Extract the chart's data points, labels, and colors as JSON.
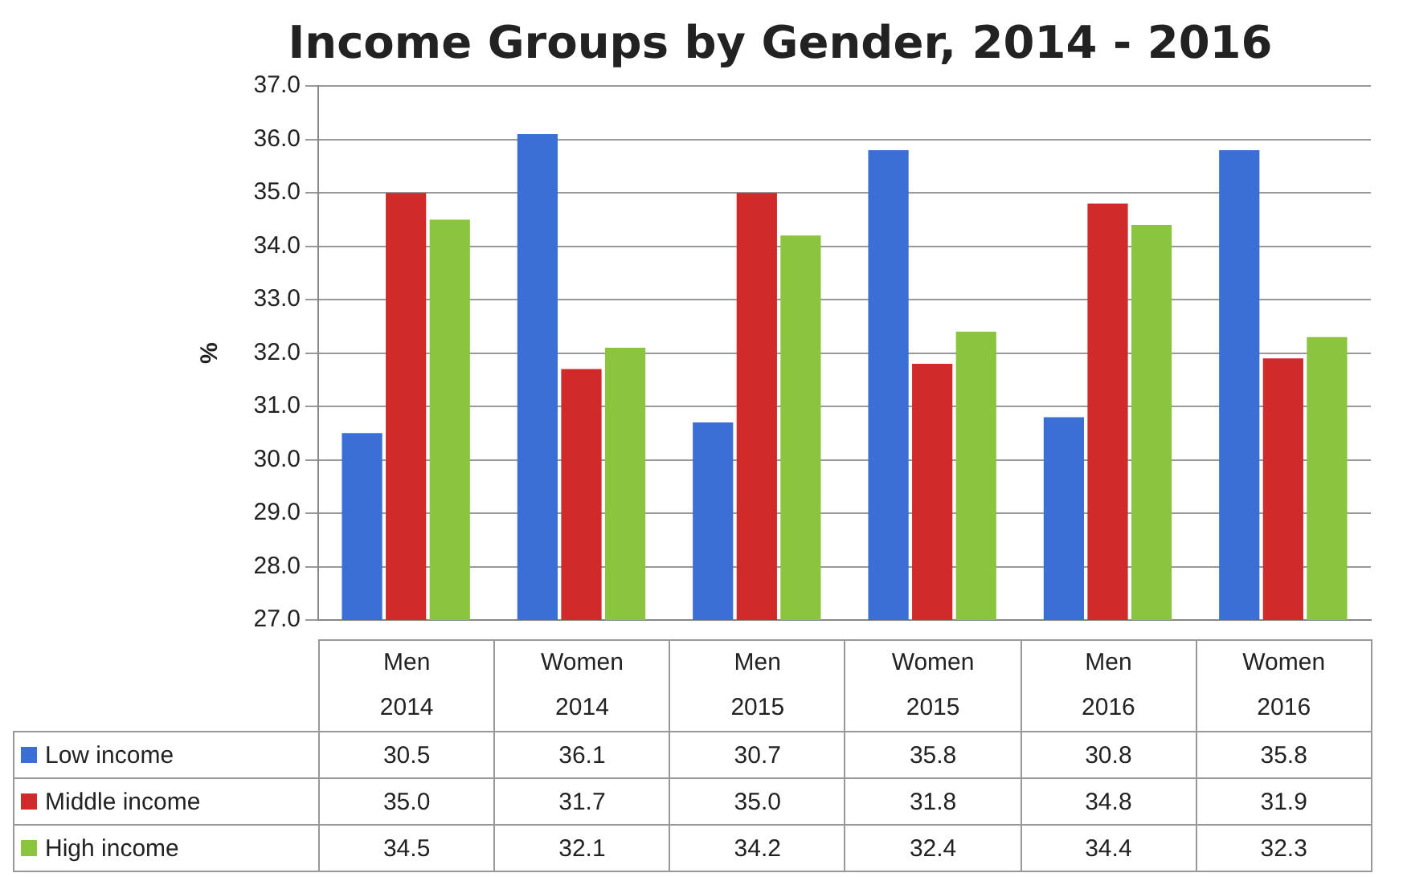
{
  "chart_data": {
    "type": "bar",
    "title": "Income Groups by Gender, 2014 - 2016",
    "ylabel": "%",
    "categories": [
      "Men\n2014",
      "Women\n2014",
      "Men\n2015",
      "Women\n2015",
      "Men\n2016",
      "Women\n2016"
    ],
    "series": [
      {
        "name": "Low income",
        "color": "#3b6fd6",
        "values": [
          30.5,
          36.1,
          30.7,
          35.8,
          30.8,
          35.8
        ],
        "value_labels": [
          "30.5",
          "36.1",
          "30.7",
          "35.8",
          "30.8",
          "35.8"
        ]
      },
      {
        "name": "Middle income",
        "color": "#d02a2a",
        "values": [
          35.0,
          31.7,
          35.0,
          31.8,
          34.8,
          31.9
        ],
        "value_labels": [
          "35.0",
          "31.7",
          "35.0",
          "31.8",
          "34.8",
          "31.9"
        ]
      },
      {
        "name": "High income",
        "color": "#8bc43f",
        "values": [
          34.5,
          32.1,
          34.2,
          32.4,
          34.4,
          32.3
        ],
        "value_labels": [
          "34.5",
          "32.1",
          "34.2",
          "32.4",
          "34.4",
          "32.3"
        ]
      }
    ],
    "ylim": [
      27,
      37
    ],
    "yticks": [
      {
        "value": 27,
        "label": "27.0"
      },
      {
        "value": 28,
        "label": "28.0"
      },
      {
        "value": 29,
        "label": "29.0"
      },
      {
        "value": 30,
        "label": "30.0"
      },
      {
        "value": 31,
        "label": "31.0"
      },
      {
        "value": 32,
        "label": "32.0"
      },
      {
        "value": 33,
        "label": "33.0"
      },
      {
        "value": 34,
        "label": "34.0"
      },
      {
        "value": 35,
        "label": "35.0"
      },
      {
        "value": 36,
        "label": "36.0"
      },
      {
        "value": 37,
        "label": "37.0"
      }
    ],
    "grid": "y",
    "legend": "bottom"
  }
}
